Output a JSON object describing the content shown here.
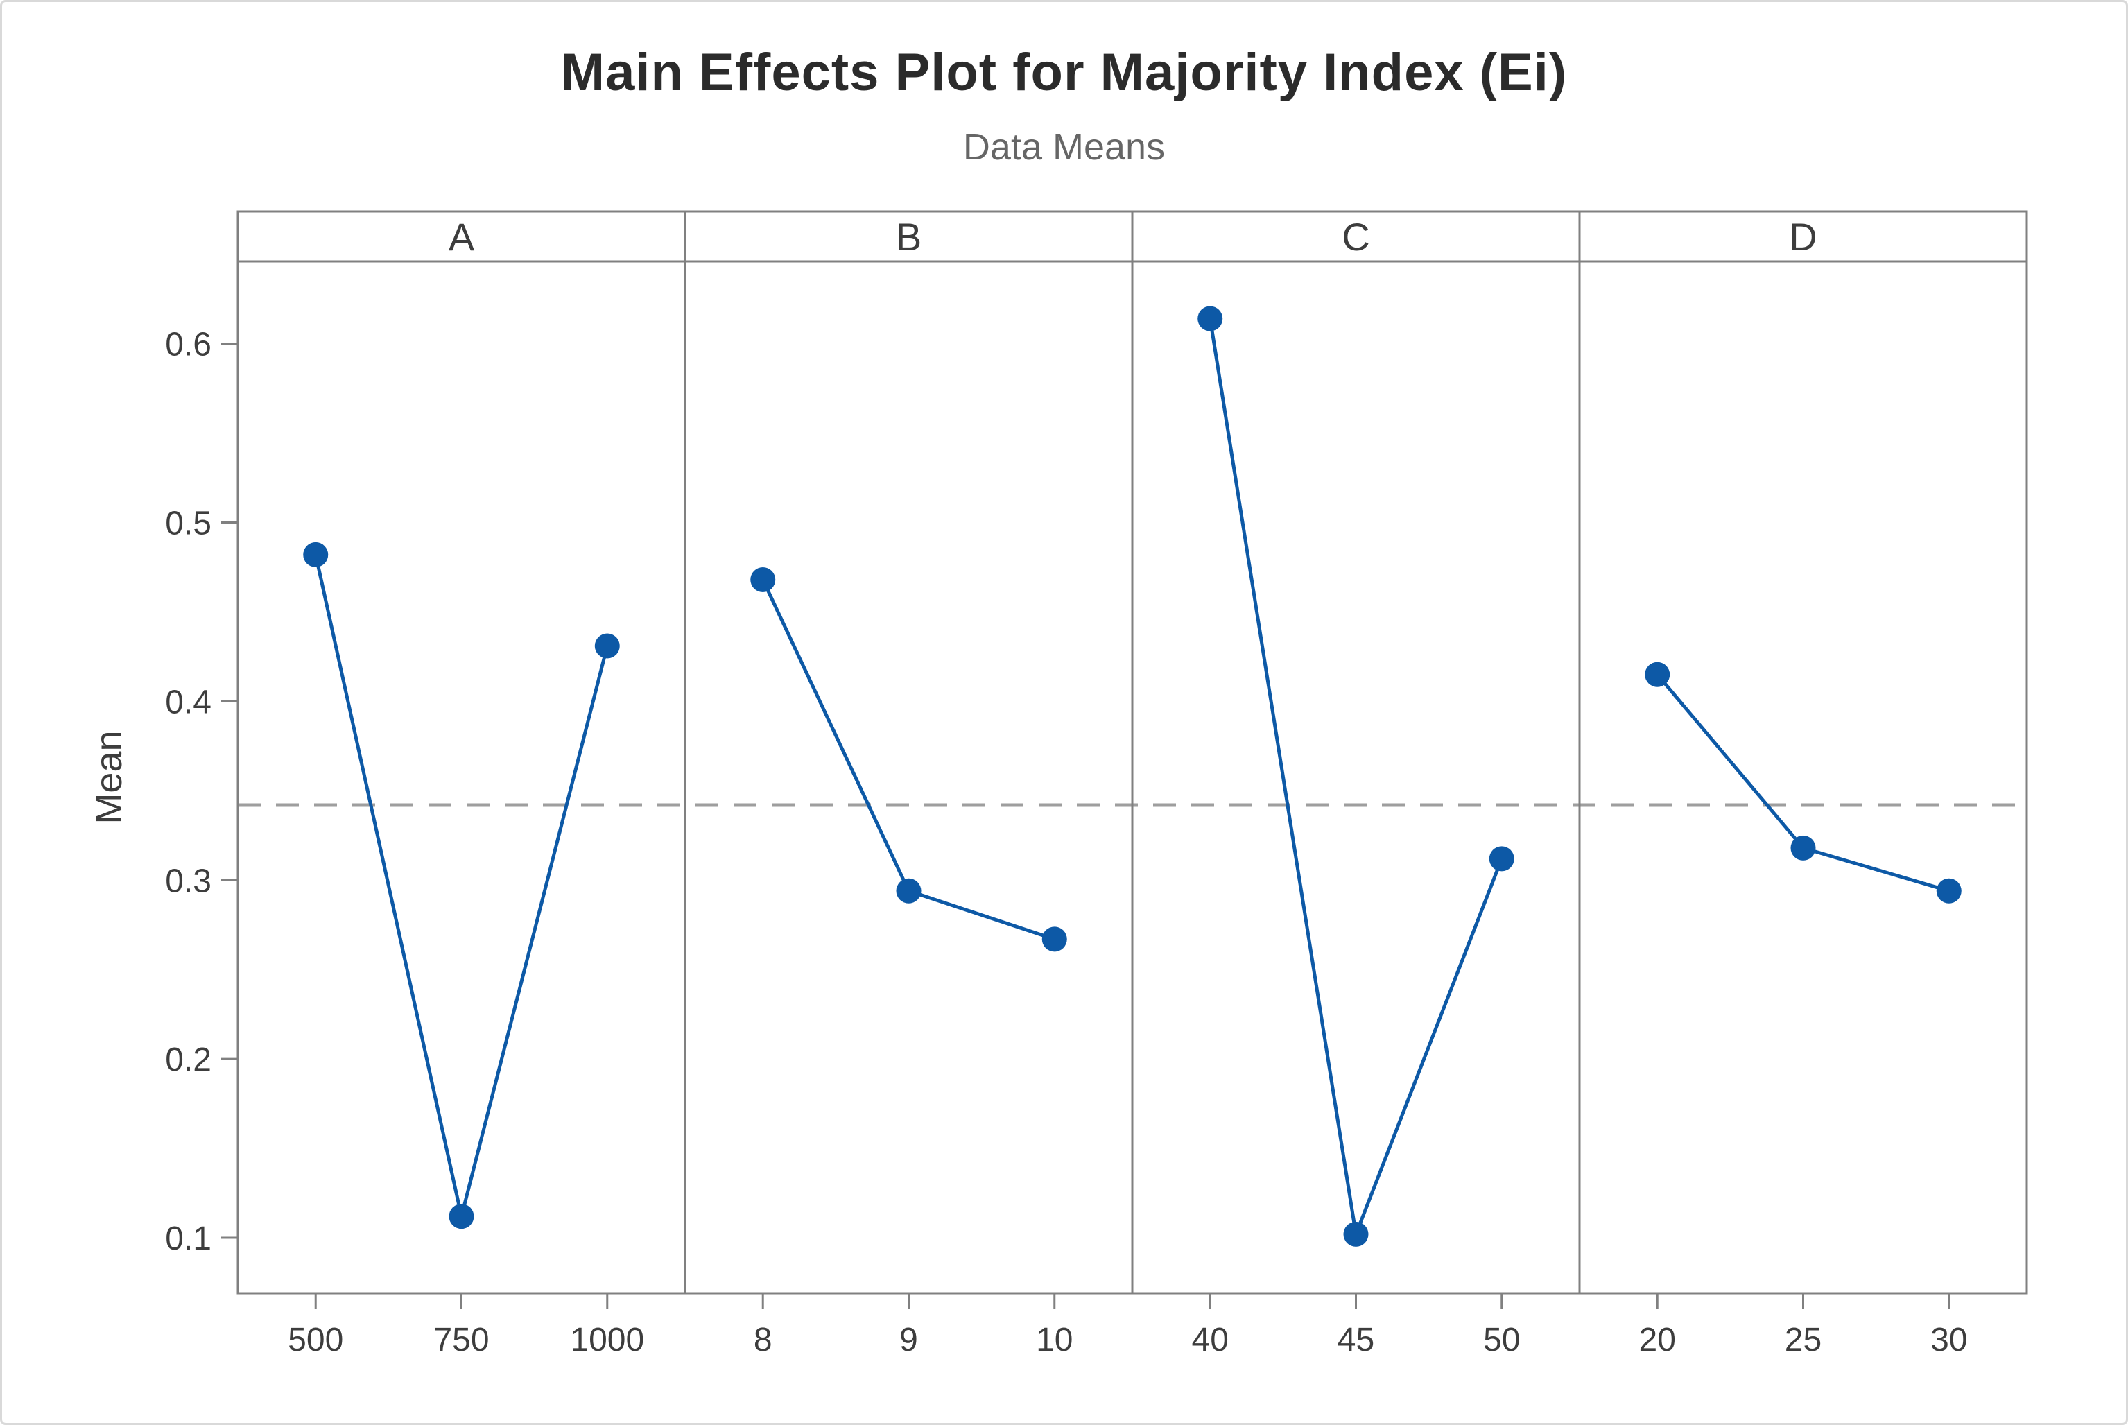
{
  "figure": {
    "title": "Main Effects Plot for Majority Index (Ei)",
    "subtitle": "Data Means"
  },
  "chart_data": {
    "type": "line",
    "title": "Main Effects Plot for Majority Index (Ei)",
    "subtitle": "Data Means",
    "ylabel": "Mean",
    "xlabel": "",
    "legend": "none",
    "grid": "off",
    "ylim": [
      0.069,
      0.646
    ],
    "y_ticks": [
      0.1,
      0.2,
      0.3,
      0.4,
      0.5,
      0.6
    ],
    "y_tick_labels": [
      "0.1",
      "0.2",
      "0.3",
      "0.4",
      "0.5",
      "0.6"
    ],
    "reference_line": {
      "value": 0.342,
      "style": "dashed",
      "color": "#9e9e9e",
      "meaning": "overall mean of Majority Index (Ei)"
    },
    "panels": [
      {
        "label": "A",
        "categories": [
          "500",
          "750",
          "1000"
        ],
        "values": [
          0.482,
          0.112,
          0.431
        ]
      },
      {
        "label": "B",
        "categories": [
          "8",
          "9",
          "10"
        ],
        "values": [
          0.468,
          0.294,
          0.267
        ]
      },
      {
        "label": "C",
        "categories": [
          "40",
          "45",
          "50"
        ],
        "values": [
          0.614,
          0.102,
          0.312
        ]
      },
      {
        "label": "D",
        "categories": [
          "20",
          "25",
          "30"
        ],
        "values": [
          0.415,
          0.318,
          0.294
        ]
      }
    ],
    "colors": {
      "series": "#0d59a6",
      "axis": "#808080",
      "panel_border": "#808080",
      "tick_text": "#3d3d3d",
      "title_text": "#2b2b2b",
      "subtitle_text": "#666666",
      "figure_border": "#d9d9d9"
    }
  }
}
